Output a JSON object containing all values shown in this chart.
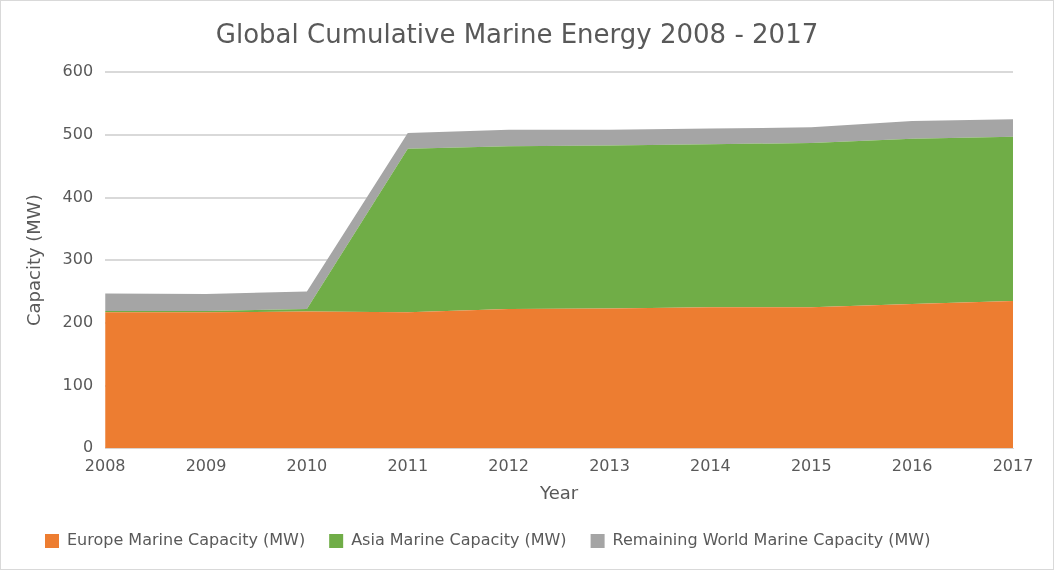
{
  "chart_data": {
    "type": "area",
    "title": "Global Cumulative Marine Energy 2008 - 2017",
    "xlabel": "Year",
    "ylabel": "Capacity (MW)",
    "categories": [
      "2008",
      "2009",
      "2010",
      "2011",
      "2012",
      "2013",
      "2014",
      "2015",
      "2016",
      "2017"
    ],
    "stacked": true,
    "series": [
      {
        "name": "Europe Marine Capacity (MW)",
        "color": "#ed7d31",
        "values": [
          217,
          217,
          218,
          217,
          222,
          223,
          225,
          225,
          230,
          235
        ]
      },
      {
        "name": "Asia Marine Capacity (MW)",
        "color": "#70ad47",
        "values": [
          2,
          2,
          4,
          261,
          260,
          260,
          260,
          262,
          264,
          262
        ]
      },
      {
        "name": "Remaining World Marine Capacity (MW)",
        "color": "#a5a5a5",
        "values": [
          28,
          27,
          28,
          25,
          26,
          25,
          25,
          25,
          28,
          28
        ]
      }
    ],
    "ylim": [
      0,
      600
    ],
    "yticks": [
      0,
      100,
      200,
      300,
      400,
      500,
      600
    ],
    "grid": "y",
    "legend": "bottom"
  }
}
